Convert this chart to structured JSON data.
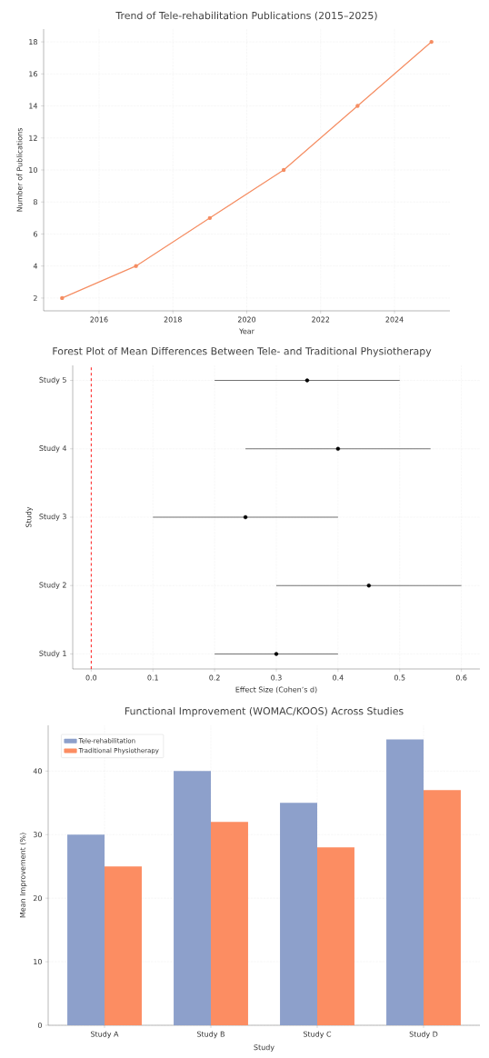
{
  "chart_data": [
    {
      "type": "line",
      "title": "Trend of Tele-rehabilitation Publications (2015–2025)",
      "xlabel": "Year",
      "ylabel": "Number of Publications",
      "x": [
        2015,
        2017,
        2019,
        2021,
        2023,
        2025
      ],
      "values": [
        2,
        4,
        7,
        10,
        14,
        18
      ],
      "color": "#f58d62",
      "xlim": [
        2014.5,
        2025.5
      ],
      "ylim": [
        1.2,
        18.8
      ],
      "xticks": [
        2016,
        2018,
        2020,
        2022,
        2024
      ],
      "yticks": [
        2,
        4,
        6,
        8,
        10,
        12,
        14,
        16,
        18
      ],
      "grid": true,
      "marker": "circle"
    },
    {
      "type": "scatter",
      "orientation": "horizontal",
      "title": "Forest Plot of Mean Differences Between Tele- and Traditional Physiotherapy",
      "xlabel": "Effect Size (Cohen’s d)",
      "ylabel": "Study",
      "categories": [
        "Study 5",
        "Study 4",
        "Study 3",
        "Study 2",
        "Study 1"
      ],
      "values": [
        0.35,
        0.4,
        0.25,
        0.45,
        0.3
      ],
      "errors": [
        [
          0.2,
          0.5
        ],
        [
          0.25,
          0.55
        ],
        [
          0.1,
          0.4
        ],
        [
          0.3,
          0.6
        ],
        [
          0.2,
          0.4
        ]
      ],
      "color": "#000000",
      "xlim": [
        -0.03,
        0.63
      ],
      "xticks": [
        {
          "value": 0,
          "label": "0.0"
        },
        0.1,
        0.2,
        0.3,
        0.4,
        0.5,
        0.6
      ],
      "ref_lines": [
        {
          "axis": "x",
          "value": 0,
          "color": "#ff0000",
          "line_style": "dashed"
        }
      ],
      "grid": true,
      "marker": "circle"
    },
    {
      "type": "bar",
      "title": "Functional Improvement (WOMAC/KOOS) Across Studies",
      "xlabel": "Study",
      "ylabel": "Mean Improvement (%)",
      "categories": [
        "Study A",
        "Study B",
        "Study C",
        "Study D"
      ],
      "series": [
        {
          "name": "Tele-rehabilitation",
          "color": "#8da0cb",
          "values": [
            30,
            40,
            35,
            45
          ]
        },
        {
          "name": "Traditional Physiotherapy",
          "color": "#fc8d62",
          "values": [
            25,
            32,
            28,
            37
          ]
        }
      ],
      "ylim": [
        0,
        47.2
      ],
      "yticks": [
        0,
        10,
        20,
        30,
        40
      ],
      "grid": true,
      "legend": "top left"
    }
  ]
}
